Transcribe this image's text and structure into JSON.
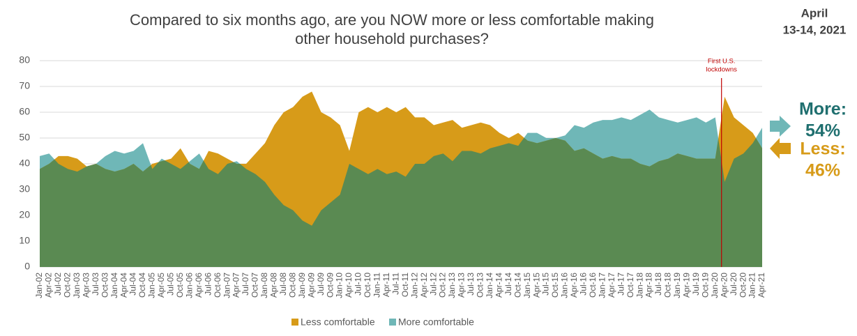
{
  "chart_data": {
    "type": "overlap-area",
    "title_lines": [
      "Compared to six months ago, are you NOW more or less comfortable making",
      "other household purchases?"
    ],
    "date_lines": [
      "April",
      "13-14, 2021"
    ],
    "annotation_lines": [
      "First U.S.",
      "lockdowns"
    ],
    "annotation_at": "Apr-20",
    "annotation_color": "#c00000",
    "categories": [
      "Jan-02",
      "Apr-02",
      "Jul-02",
      "Oct-02",
      "Jan-03",
      "Apr-03",
      "Jul-03",
      "Oct-03",
      "Jan-04",
      "Apr-04",
      "Jul-04",
      "Oct-04",
      "Jan-05",
      "Apr-05",
      "Jul-05",
      "Oct-05",
      "Jan-06",
      "Apr-06",
      "Jul-06",
      "Oct-06",
      "Jan-07",
      "Apr-07",
      "Jul-07",
      "Oct-07",
      "Jan-08",
      "Apr-08",
      "Jul-08",
      "Oct-08",
      "Jan-09",
      "Apr-09",
      "Jul-09",
      "Oct-09",
      "Jan-10",
      "Apr-10",
      "Jul-10",
      "Oct-10",
      "Jan-11",
      "Apr-11",
      "Jul-11",
      "Oct-11",
      "Jan-12",
      "Apr-12",
      "Jul-12",
      "Oct-12",
      "Jan-13",
      "Apr-13",
      "Jul-13",
      "Oct-13",
      "Jan-14",
      "Apr-14",
      "Jul-14",
      "Oct-14",
      "Jan-15",
      "Apr-15",
      "Jul-15",
      "Oct-15",
      "Jan-16",
      "Apr-16",
      "Jul-16",
      "Oct-16",
      "Jan-17",
      "Apr-17",
      "Jul-17",
      "Oct-17",
      "Jan-18",
      "Apr-18",
      "Jul-18",
      "Oct-18",
      "Jan-19",
      "Apr-19",
      "Jul-19",
      "Oct-19",
      "Jan-20",
      "Apr-20",
      "Jul-20",
      "Oct-20",
      "Jan-21",
      "Apr-21"
    ],
    "series": [
      {
        "name": "Less comfortable",
        "color": "#d79b19",
        "values": [
          38,
          40,
          43,
          43,
          42,
          39,
          40,
          38,
          37,
          38,
          40,
          37,
          40,
          41,
          42,
          46,
          40,
          38,
          45,
          44,
          42,
          40,
          40,
          44,
          48,
          55,
          60,
          62,
          66,
          68,
          60,
          58,
          55,
          45,
          60,
          62,
          60,
          62,
          60,
          62,
          58,
          58,
          55,
          56,
          57,
          54,
          55,
          56,
          55,
          52,
          50,
          52,
          49,
          48,
          49,
          50,
          49,
          45,
          46,
          44,
          42,
          43,
          42,
          42,
          40,
          39,
          41,
          42,
          44,
          43,
          42,
          42,
          42,
          66,
          58,
          55,
          52,
          46
        ]
      },
      {
        "name": "More comfortable",
        "color": "#6fb7b7",
        "values": [
          43,
          44,
          40,
          38,
          37,
          39,
          40,
          43,
          45,
          44,
          45,
          48,
          38,
          42,
          40,
          38,
          41,
          44,
          38,
          36,
          40,
          41,
          38,
          36,
          33,
          28,
          24,
          22,
          18,
          16,
          22,
          25,
          28,
          40,
          38,
          36,
          38,
          36,
          37,
          35,
          40,
          40,
          43,
          44,
          41,
          45,
          45,
          44,
          46,
          47,
          48,
          47,
          52,
          52,
          50,
          50,
          51,
          55,
          54,
          56,
          57,
          57,
          58,
          57,
          59,
          61,
          58,
          57,
          56,
          57,
          58,
          56,
          58,
          33,
          42,
          44,
          48,
          54
        ]
      }
    ],
    "overlap_color": "#5a8a52",
    "ylim": [
      0,
      80
    ],
    "yticks": [
      0,
      10,
      20,
      30,
      40,
      50,
      60,
      70,
      80
    ],
    "grid": true,
    "callouts": [
      {
        "label": "More:",
        "value": "54%",
        "color": "#1f6f6f"
      },
      {
        "label": "Less:",
        "value": "46%",
        "color": "#d79b19"
      }
    ]
  }
}
